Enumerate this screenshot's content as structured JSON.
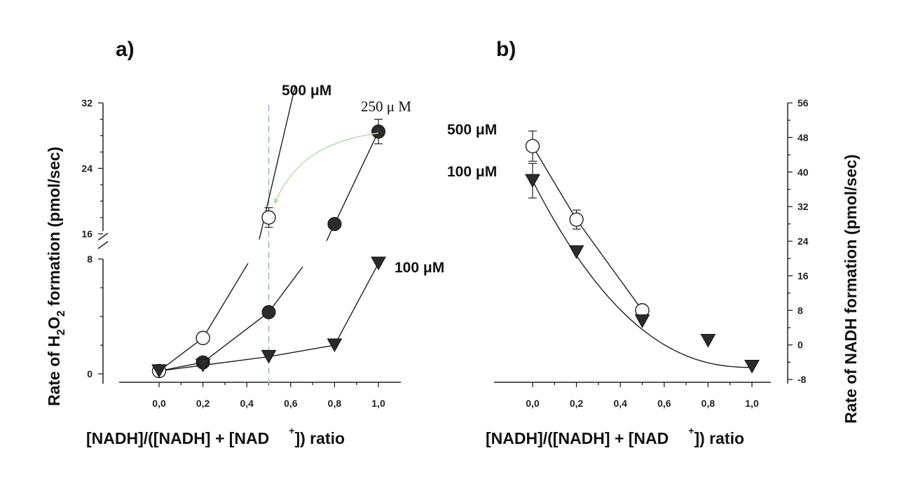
{
  "chart_data": [
    {
      "type": "line",
      "panel_label": "a)",
      "xlabel_main": "[NADH]/([NADH] + [NAD",
      "xlabel_sup": "+",
      "xlabel_tail": "]) ratio",
      "ylabel_parts": [
        "Rate of H",
        "2",
        "O",
        "2",
        " formation (pmol/sec)"
      ],
      "x_ticks": [
        "0,0",
        "0,2",
        "0,4",
        "0,6",
        "0,8",
        "1,0"
      ],
      "x_tick_values": [
        0.0,
        0.2,
        0.4,
        0.6,
        0.8,
        1.0
      ],
      "y_ticks_lower": [
        "0",
        "8"
      ],
      "y_ticks_upper": [
        "16",
        "24",
        "32"
      ],
      "y_axis_break": {
        "lower_range": [
          0,
          8
        ],
        "upper_range": [
          16,
          32
        ]
      },
      "vertical_reference_x": 0.5,
      "series": [
        {
          "name": "500 μM",
          "marker": "open-circle",
          "x": [
            0.0,
            0.2,
            0.5
          ],
          "y": [
            0.2,
            2.5,
            18.0
          ],
          "err": [
            0,
            0,
            1.2
          ]
        },
        {
          "name": "250 μ M",
          "marker": "filled-circle",
          "x": [
            0.2,
            0.5,
            0.8,
            1.0
          ],
          "y": [
            0.8,
            4.3,
            17.2,
            28.5
          ],
          "err": [
            0,
            0,
            0,
            1.5
          ]
        },
        {
          "name": "100 μM",
          "marker": "filled-triangle",
          "x": [
            0.0,
            0.2,
            0.5,
            0.8,
            1.0
          ],
          "y": [
            0.2,
            0.6,
            1.2,
            2.0,
            7.7
          ],
          "err": [
            0,
            0,
            0,
            0,
            0
          ]
        }
      ],
      "labels": {
        "s500": "500  μM",
        "s250": "250 μ  M",
        "s100": "100  μM"
      }
    },
    {
      "type": "line",
      "panel_label": "b)",
      "xlabel_main": "[NADH]/([NADH] + [NAD",
      "xlabel_sup": "+",
      "xlabel_tail": "]) ratio",
      "ylabel": "Rate of NADH formation (pmol/sec)",
      "x_ticks": [
        "0,0",
        "0,2",
        "0,4",
        "0,6",
        "0,8",
        "1,0"
      ],
      "x_tick_values": [
        0.0,
        0.2,
        0.4,
        0.6,
        0.8,
        1.0
      ],
      "y_ticks": [
        "-8",
        "0",
        "8",
        "16",
        "24",
        "32",
        "40",
        "48",
        "56"
      ],
      "y_tick_values": [
        -8,
        0,
        8,
        16,
        24,
        32,
        40,
        48,
        56
      ],
      "ylim": [
        -8,
        56
      ],
      "series": [
        {
          "name": "500 μM",
          "marker": "open-circle",
          "x": [
            0.0,
            0.2,
            0.5
          ],
          "y": [
            46,
            29,
            8
          ],
          "err": [
            3.5,
            2.2,
            0
          ]
        },
        {
          "name": "100 μM",
          "marker": "filled-triangle",
          "x": [
            0.0,
            0.2,
            0.5,
            0.8,
            1.0
          ],
          "y": [
            38,
            21.5,
            5.5,
            1,
            -5
          ],
          "err": [
            4,
            0,
            0,
            0,
            0
          ]
        }
      ],
      "labels": {
        "s500": "500  μM",
        "s100": "100  μM"
      }
    }
  ]
}
